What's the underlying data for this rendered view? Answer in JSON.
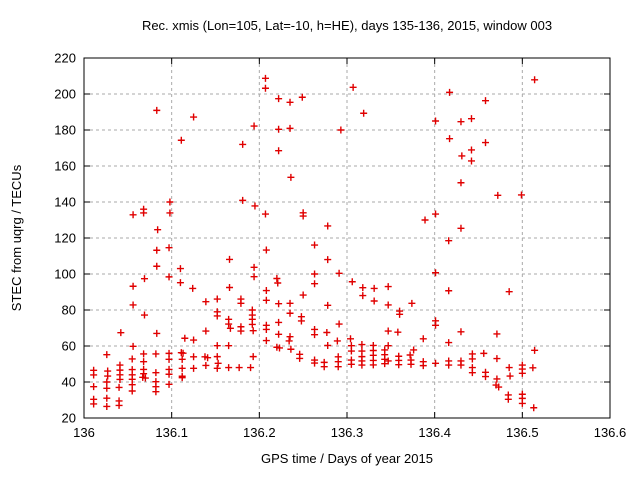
{
  "window": {
    "background": "#ffffff"
  },
  "chart_data": {
    "type": "scatter",
    "title": "Rec. xmis (Lon=105, Lat=-10, h=HE), days 135-136, 2015, window 003",
    "xlabel": "GPS time / Days of year 2015",
    "ylabel": "STEC from uqrg / TECUs",
    "xlim": [
      136.0,
      136.6
    ],
    "ylim": [
      20,
      220
    ],
    "xticks": [
      136.0,
      136.1,
      136.2,
      136.3,
      136.4,
      136.5,
      136.6
    ],
    "xtick_labels": [
      "136",
      "136.1",
      "136.2",
      "136.3",
      "136.4",
      "136.5",
      "136.6"
    ],
    "yticks": [
      20,
      40,
      60,
      80,
      100,
      120,
      140,
      160,
      180,
      200,
      220
    ],
    "ytick_labels": [
      "20",
      "40",
      "60",
      "80",
      "100",
      "120",
      "140",
      "160",
      "180",
      "200",
      "220"
    ],
    "grid": true,
    "grid_color": "#aaaaaa",
    "border_color": "#000000",
    "legend": "none",
    "marker": "plus",
    "marker_color": "#e00000",
    "marker_size": 7,
    "points": [
      [
        136.011,
        46.5
      ],
      [
        136.011,
        43.9
      ],
      [
        136.011,
        37.4
      ],
      [
        136.011,
        30.4
      ],
      [
        136.011,
        27.8
      ],
      [
        136.026,
        55.2
      ],
      [
        136.027,
        46.1
      ],
      [
        136.027,
        43.3
      ],
      [
        136.026,
        40.0
      ],
      [
        136.026,
        36.5
      ],
      [
        136.026,
        31.0
      ],
      [
        136.026,
        26.4
      ],
      [
        136.042,
        67.4
      ],
      [
        136.041,
        49.4
      ],
      [
        136.041,
        46.6
      ],
      [
        136.041,
        44.0
      ],
      [
        136.041,
        41.4
      ],
      [
        136.04,
        37.0
      ],
      [
        136.04,
        29.5
      ],
      [
        136.04,
        27.0
      ],
      [
        136.056,
        132.9
      ],
      [
        136.056,
        93.2
      ],
      [
        136.056,
        82.8
      ],
      [
        136.056,
        59.8
      ],
      [
        136.055,
        52.8
      ],
      [
        136.055,
        46.9
      ],
      [
        136.055,
        44.0
      ],
      [
        136.055,
        41.5
      ],
      [
        136.055,
        38.5
      ],
      [
        136.055,
        35.0
      ],
      [
        136.068,
        136.0
      ],
      [
        136.068,
        133.9
      ],
      [
        136.069,
        97.4
      ],
      [
        136.069,
        77.2
      ],
      [
        136.068,
        55.6
      ],
      [
        136.068,
        51.3
      ],
      [
        136.068,
        47.0
      ],
      [
        136.068,
        44.6
      ],
      [
        136.067,
        42.6
      ],
      [
        136.07,
        42.2
      ],
      [
        136.083,
        190.9
      ],
      [
        136.084,
        124.6
      ],
      [
        136.083,
        113.2
      ],
      [
        136.083,
        104.3
      ],
      [
        136.083,
        67.0
      ],
      [
        136.082,
        55.6
      ],
      [
        136.082,
        45.2
      ],
      [
        136.082,
        40.2
      ],
      [
        136.082,
        37.4
      ],
      [
        136.082,
        34.6
      ],
      [
        136.098,
        140.0
      ],
      [
        136.098,
        133.9
      ],
      [
        136.097,
        114.6
      ],
      [
        136.097,
        98.4
      ],
      [
        136.097,
        55.9
      ],
      [
        136.097,
        52.6
      ],
      [
        136.097,
        47.0
      ],
      [
        136.097,
        44.3
      ],
      [
        136.097,
        38.7
      ],
      [
        136.111,
        174.3
      ],
      [
        136.11,
        103.0
      ],
      [
        136.11,
        95.2
      ],
      [
        136.115,
        64.3
      ],
      [
        136.111,
        56.3
      ],
      [
        136.113,
        56.0
      ],
      [
        136.112,
        52.6
      ],
      [
        136.112,
        47.6
      ],
      [
        136.112,
        43.2
      ],
      [
        136.112,
        42.4
      ],
      [
        136.125,
        187.2
      ],
      [
        136.124,
        92.0
      ],
      [
        136.125,
        63.3
      ],
      [
        136.125,
        54.0
      ],
      [
        136.125,
        47.6
      ],
      [
        136.139,
        84.6
      ],
      [
        136.139,
        68.3
      ],
      [
        136.138,
        54.0
      ],
      [
        136.141,
        53.5
      ],
      [
        136.139,
        49.2
      ],
      [
        136.152,
        86.1
      ],
      [
        136.152,
        79.0
      ],
      [
        136.152,
        76.7
      ],
      [
        136.152,
        60.2
      ],
      [
        136.152,
        54.1
      ],
      [
        136.153,
        50.4
      ],
      [
        136.152,
        47.6
      ],
      [
        136.166,
        108.1
      ],
      [
        136.166,
        92.5
      ],
      [
        136.165,
        74.8
      ],
      [
        136.165,
        72.2
      ],
      [
        136.167,
        69.8
      ],
      [
        136.165,
        60.2
      ],
      [
        136.165,
        48.0
      ],
      [
        136.179,
        86.1
      ],
      [
        136.179,
        83.7
      ],
      [
        136.179,
        70.7
      ],
      [
        136.179,
        68.3
      ],
      [
        136.177,
        48.0
      ],
      [
        136.181,
        172.0
      ],
      [
        136.181,
        140.9
      ],
      [
        136.194,
        182.2
      ],
      [
        136.195,
        137.8
      ],
      [
        136.194,
        103.7
      ],
      [
        136.194,
        98.5
      ],
      [
        136.192,
        80.0
      ],
      [
        136.192,
        77.2
      ],
      [
        136.192,
        74.8
      ],
      [
        136.192,
        72.0
      ],
      [
        136.193,
        68.5
      ],
      [
        136.193,
        54.1
      ],
      [
        136.19,
        48.0
      ],
      [
        136.207,
        208.7
      ],
      [
        136.207,
        203.2
      ],
      [
        136.207,
        133.3
      ],
      [
        136.208,
        113.3
      ],
      [
        136.208,
        90.8
      ],
      [
        136.208,
        85.4
      ],
      [
        136.208,
        71.5
      ],
      [
        136.208,
        69.2
      ],
      [
        136.208,
        63.0
      ],
      [
        136.222,
        197.4
      ],
      [
        136.222,
        180.4
      ],
      [
        136.222,
        168.5
      ],
      [
        136.22,
        97.5
      ],
      [
        136.221,
        95.0
      ],
      [
        136.222,
        83.5
      ],
      [
        136.222,
        73.1
      ],
      [
        136.222,
        66.5
      ],
      [
        136.22,
        59.3
      ],
      [
        136.223,
        58.9
      ],
      [
        136.235,
        195.4
      ],
      [
        136.235,
        180.9
      ],
      [
        136.236,
        153.7
      ],
      [
        136.235,
        83.7
      ],
      [
        136.235,
        78.2
      ],
      [
        136.235,
        65.2
      ],
      [
        136.234,
        62.8
      ],
      [
        136.236,
        58.2
      ],
      [
        136.249,
        198.2
      ],
      [
        136.25,
        134.0
      ],
      [
        136.25,
        132.2
      ],
      [
        136.25,
        88.3
      ],
      [
        136.248,
        76.3
      ],
      [
        136.248,
        73.9
      ],
      [
        136.246,
        55.4
      ],
      [
        136.246,
        53.1
      ],
      [
        136.263,
        116.1
      ],
      [
        136.263,
        100.0
      ],
      [
        136.263,
        94.6
      ],
      [
        136.263,
        69.2
      ],
      [
        136.263,
        66.3
      ],
      [
        136.263,
        52.2
      ],
      [
        136.263,
        50.5
      ],
      [
        136.278,
        126.7
      ],
      [
        136.278,
        108.0
      ],
      [
        136.278,
        82.6
      ],
      [
        136.277,
        67.5
      ],
      [
        136.278,
        60.3
      ],
      [
        136.274,
        50.9
      ],
      [
        136.274,
        48.5
      ],
      [
        136.293,
        180.0
      ],
      [
        136.291,
        100.4
      ],
      [
        136.291,
        72.2
      ],
      [
        136.289,
        62.8
      ],
      [
        136.29,
        54.0
      ],
      [
        136.29,
        51.3
      ],
      [
        136.29,
        48.5
      ],
      [
        136.307,
        203.7
      ],
      [
        136.306,
        95.7
      ],
      [
        136.304,
        64.0
      ],
      [
        136.305,
        60.2
      ],
      [
        136.305,
        57.2
      ],
      [
        136.305,
        52.2
      ],
      [
        136.305,
        49.8
      ],
      [
        136.319,
        189.3
      ],
      [
        136.318,
        92.4
      ],
      [
        136.318,
        88.0
      ],
      [
        136.317,
        60.8
      ],
      [
        136.317,
        57.2
      ],
      [
        136.317,
        54.1
      ],
      [
        136.317,
        51.7
      ],
      [
        136.317,
        49.4
      ],
      [
        136.331,
        92.0
      ],
      [
        136.331,
        85.0
      ],
      [
        136.33,
        60.3
      ],
      [
        136.33,
        57.5
      ],
      [
        136.33,
        54.8
      ],
      [
        136.33,
        52.0
      ],
      [
        136.33,
        49.5
      ],
      [
        136.347,
        93.0
      ],
      [
        136.347,
        82.8
      ],
      [
        136.347,
        68.3
      ],
      [
        136.347,
        60.2
      ],
      [
        136.347,
        51.7
      ],
      [
        136.343,
        57.8
      ],
      [
        136.343,
        55.2
      ],
      [
        136.343,
        52.6
      ],
      [
        136.343,
        50.2
      ],
      [
        136.36,
        79.4
      ],
      [
        136.36,
        77.6
      ],
      [
        136.358,
        67.7
      ],
      [
        136.359,
        54.3
      ],
      [
        136.359,
        52.0
      ],
      [
        136.359,
        49.6
      ],
      [
        136.374,
        83.7
      ],
      [
        136.376,
        57.8
      ],
      [
        136.372,
        55.0
      ],
      [
        136.373,
        52.2
      ],
      [
        136.373,
        49.8
      ],
      [
        136.389,
        130.0
      ],
      [
        136.387,
        64.0
      ],
      [
        136.387,
        51.3
      ],
      [
        136.387,
        49.1
      ],
      [
        136.401,
        185.0
      ],
      [
        136.401,
        133.3
      ],
      [
        136.401,
        100.7
      ],
      [
        136.401,
        74.0
      ],
      [
        136.401,
        71.5
      ],
      [
        136.401,
        50.4
      ],
      [
        136.417,
        200.9
      ],
      [
        136.417,
        175.2
      ],
      [
        136.416,
        118.5
      ],
      [
        136.416,
        90.7
      ],
      [
        136.416,
        61.9
      ],
      [
        136.416,
        51.7
      ],
      [
        136.416,
        49.4
      ],
      [
        136.43,
        184.6
      ],
      [
        136.431,
        165.6
      ],
      [
        136.43,
        150.7
      ],
      [
        136.43,
        125.4
      ],
      [
        136.43,
        67.9
      ],
      [
        136.43,
        51.7
      ],
      [
        136.43,
        49.4
      ],
      [
        136.442,
        186.3
      ],
      [
        136.442,
        168.9
      ],
      [
        136.442,
        162.8
      ],
      [
        136.443,
        55.6
      ],
      [
        136.443,
        52.8
      ],
      [
        136.443,
        48.0
      ],
      [
        136.443,
        45.2
      ],
      [
        136.458,
        196.3
      ],
      [
        136.458,
        173.0
      ],
      [
        136.456,
        55.9
      ],
      [
        136.458,
        45.4
      ],
      [
        136.458,
        43.0
      ],
      [
        136.472,
        143.7
      ],
      [
        136.471,
        66.7
      ],
      [
        136.471,
        53.0
      ],
      [
        136.471,
        41.7
      ],
      [
        136.47,
        38.3
      ],
      [
        136.473,
        37.2
      ],
      [
        136.485,
        90.2
      ],
      [
        136.485,
        48.0
      ],
      [
        136.486,
        43.3
      ],
      [
        136.484,
        32.8
      ],
      [
        136.484,
        30.4
      ],
      [
        136.499,
        143.9
      ],
      [
        136.5,
        49.4
      ],
      [
        136.5,
        47.2
      ],
      [
        136.5,
        44.8
      ],
      [
        136.5,
        33.2
      ],
      [
        136.5,
        30.9
      ],
      [
        136.5,
        28.1
      ],
      [
        136.514,
        207.9
      ],
      [
        136.514,
        57.6
      ],
      [
        136.512,
        47.9
      ],
      [
        136.513,
        25.7
      ]
    ]
  }
}
